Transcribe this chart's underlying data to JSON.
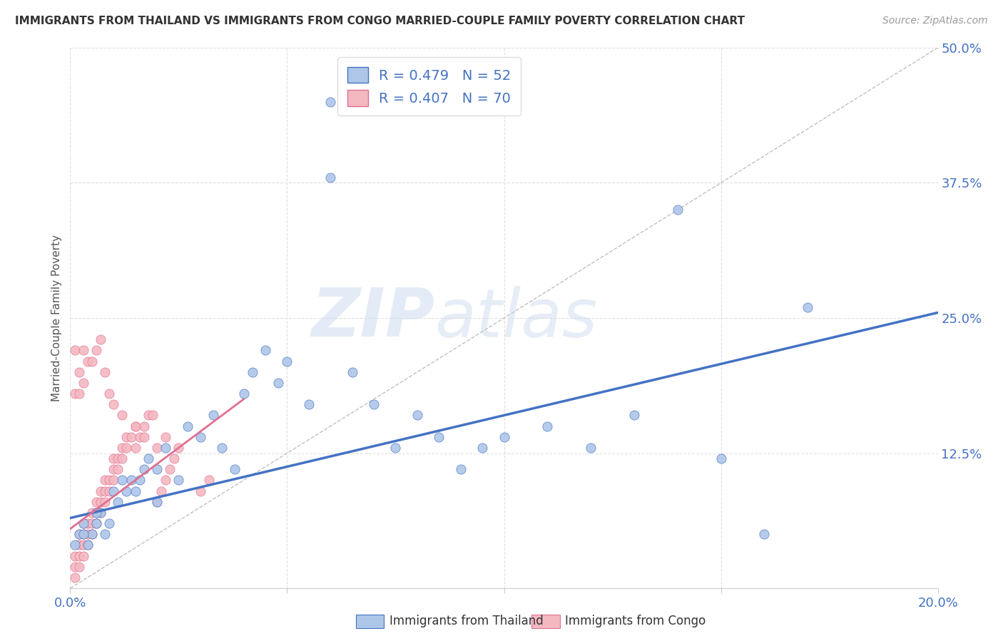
{
  "title": "IMMIGRANTS FROM THAILAND VS IMMIGRANTS FROM CONGO MARRIED-COUPLE FAMILY POVERTY CORRELATION CHART",
  "source": "Source: ZipAtlas.com",
  "ylabel": "Married-Couple Family Poverty",
  "xlim": [
    0,
    0.2
  ],
  "ylim": [
    0,
    0.5
  ],
  "xticks": [
    0.0,
    0.05,
    0.1,
    0.15,
    0.2
  ],
  "yticks": [
    0.0,
    0.125,
    0.25,
    0.375,
    0.5
  ],
  "legend_entries": [
    {
      "label": "R = 0.479   N = 52",
      "color": "#aec6e8"
    },
    {
      "label": "R = 0.407   N = 70",
      "color": "#f4b8c1"
    }
  ],
  "legend_labels_bottom": [
    "Immigrants from Thailand",
    "Immigrants from Congo"
  ],
  "watermark_zip": "ZIP",
  "watermark_atlas": "atlas",
  "thailand_color": "#aec6e8",
  "congo_color": "#f4b8c1",
  "trend_color_thailand": "#4472c4",
  "trend_color_congo": "#e07090",
  "diagonal_color": "#c0c0c0",
  "thailand_scatter_x": [
    0.001,
    0.002,
    0.003,
    0.004,
    0.005,
    0.006,
    0.007,
    0.008,
    0.009,
    0.01,
    0.011,
    0.012,
    0.013,
    0.014,
    0.015,
    0.016,
    0.017,
    0.018,
    0.02,
    0.022,
    0.025,
    0.027,
    0.03,
    0.033,
    0.035,
    0.038,
    0.04,
    0.042,
    0.045,
    0.048,
    0.05,
    0.055,
    0.06,
    0.065,
    0.07,
    0.075,
    0.08,
    0.085,
    0.09,
    0.095,
    0.1,
    0.11,
    0.12,
    0.13,
    0.14,
    0.15,
    0.16,
    0.17,
    0.003,
    0.006,
    0.02,
    0.06
  ],
  "thailand_scatter_y": [
    0.04,
    0.05,
    0.06,
    0.04,
    0.05,
    0.06,
    0.07,
    0.05,
    0.06,
    0.09,
    0.08,
    0.1,
    0.09,
    0.1,
    0.09,
    0.1,
    0.11,
    0.12,
    0.11,
    0.13,
    0.1,
    0.15,
    0.14,
    0.16,
    0.13,
    0.11,
    0.18,
    0.2,
    0.22,
    0.19,
    0.21,
    0.17,
    0.38,
    0.2,
    0.17,
    0.13,
    0.16,
    0.14,
    0.11,
    0.13,
    0.14,
    0.15,
    0.13,
    0.16,
    0.35,
    0.12,
    0.05,
    0.26,
    0.05,
    0.07,
    0.08,
    0.45
  ],
  "congo_scatter_x": [
    0.001,
    0.001,
    0.001,
    0.002,
    0.002,
    0.002,
    0.002,
    0.003,
    0.003,
    0.003,
    0.003,
    0.004,
    0.004,
    0.004,
    0.005,
    0.005,
    0.005,
    0.006,
    0.006,
    0.006,
    0.007,
    0.007,
    0.007,
    0.008,
    0.008,
    0.008,
    0.009,
    0.009,
    0.01,
    0.01,
    0.01,
    0.011,
    0.011,
    0.012,
    0.012,
    0.013,
    0.013,
    0.014,
    0.015,
    0.015,
    0.016,
    0.017,
    0.018,
    0.019,
    0.02,
    0.021,
    0.022,
    0.023,
    0.024,
    0.025,
    0.001,
    0.002,
    0.003,
    0.003,
    0.004,
    0.005,
    0.006,
    0.007,
    0.008,
    0.009,
    0.01,
    0.012,
    0.015,
    0.017,
    0.02,
    0.022,
    0.03,
    0.032,
    0.001,
    0.002
  ],
  "congo_scatter_y": [
    0.01,
    0.02,
    0.03,
    0.02,
    0.03,
    0.04,
    0.05,
    0.03,
    0.04,
    0.05,
    0.06,
    0.04,
    0.05,
    0.06,
    0.05,
    0.06,
    0.07,
    0.06,
    0.07,
    0.08,
    0.07,
    0.08,
    0.09,
    0.08,
    0.09,
    0.1,
    0.09,
    0.1,
    0.1,
    0.11,
    0.12,
    0.11,
    0.12,
    0.12,
    0.13,
    0.13,
    0.14,
    0.14,
    0.13,
    0.15,
    0.14,
    0.15,
    0.16,
    0.16,
    0.08,
    0.09,
    0.1,
    0.11,
    0.12,
    0.13,
    0.22,
    0.2,
    0.22,
    0.19,
    0.21,
    0.21,
    0.22,
    0.23,
    0.2,
    0.18,
    0.17,
    0.16,
    0.15,
    0.14,
    0.13,
    0.14,
    0.09,
    0.1,
    0.18,
    0.18
  ],
  "background_color": "#ffffff",
  "grid_color": "#e0e0e0",
  "title_color": "#333333",
  "tick_label_color": "#4472c4"
}
